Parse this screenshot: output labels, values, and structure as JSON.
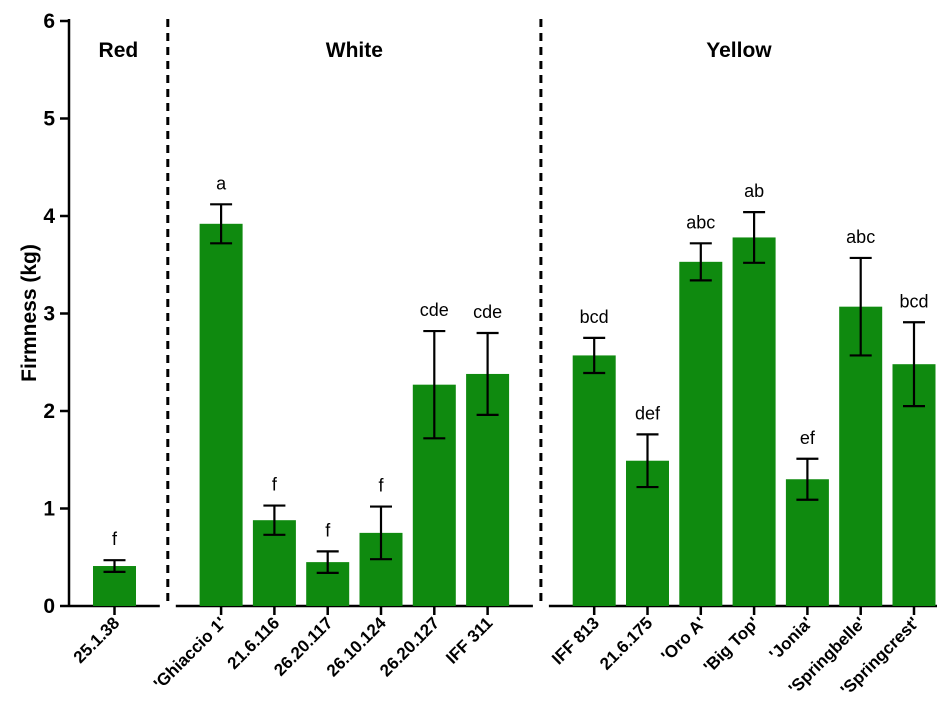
{
  "chart_data": {
    "type": "bar",
    "ylabel": "Firmness (kg)",
    "ylim": [
      0,
      6
    ],
    "yticks": [
      0,
      1,
      2,
      3,
      4,
      5,
      6
    ],
    "bar_color": "#0f8a0f",
    "groups": [
      {
        "label": "Red",
        "count": 1
      },
      {
        "label": "White",
        "count": 6
      },
      {
        "label": "Yellow",
        "count": 7
      }
    ],
    "categories": [
      "25.1.38",
      "'Ghiaccio 1'",
      "21.6.116",
      "26.20.117",
      "26.10.124",
      "26.20.127",
      "IFF 311",
      "IFF 813",
      "21.6.175",
      "'Oro A'",
      "'Big Top'",
      "'Jonia'",
      "'Springbelle'",
      "'Springcrest'"
    ],
    "values": [
      0.41,
      3.92,
      0.88,
      0.45,
      0.75,
      2.27,
      2.38,
      2.57,
      1.49,
      3.53,
      3.78,
      1.3,
      3.07,
      2.48
    ],
    "errors": [
      0.06,
      0.2,
      0.15,
      0.11,
      0.27,
      0.55,
      0.42,
      0.18,
      0.27,
      0.19,
      0.26,
      0.21,
      0.5,
      0.43
    ],
    "significance": [
      "f",
      "a",
      "f",
      "f",
      "f",
      "cde",
      "cde",
      "bcd",
      "def",
      "abc",
      "ab",
      "ef",
      "abc",
      "bcd"
    ]
  }
}
